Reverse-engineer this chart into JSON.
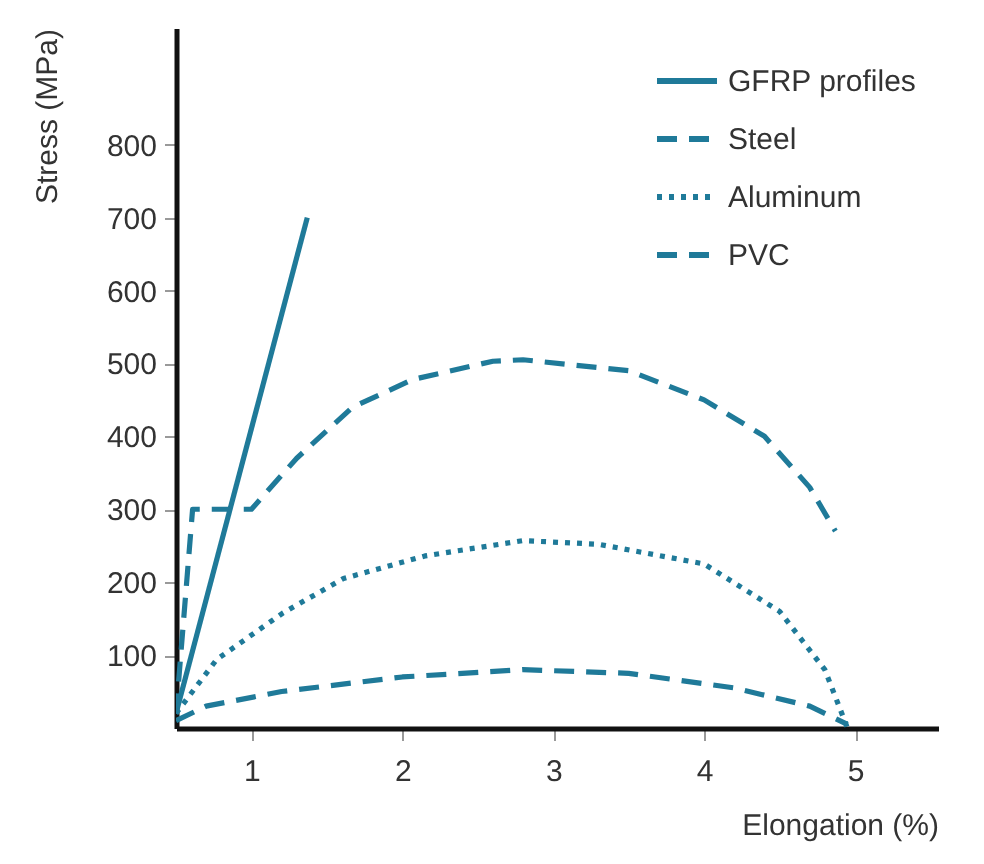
{
  "chart_data": {
    "type": "line",
    "xlabel": "Elongation (%)",
    "ylabel": "Stress (MPa)",
    "xlim": [
      0.5,
      5.55
    ],
    "ylim": [
      0,
      960
    ],
    "xticks": [
      1,
      2,
      3,
      4,
      5
    ],
    "yticks": [
      100,
      200,
      300,
      400,
      500,
      600,
      700,
      800
    ],
    "grid": false,
    "legend": "top right",
    "marker": "none",
    "series": [
      {
        "name": "GFRP profiles",
        "color": "#1f7a99",
        "line_style": "solid",
        "x": [
          0.5,
          1.37
        ],
        "values": [
          20,
          700
        ]
      },
      {
        "name": "Steel",
        "color": "#1f7a99",
        "line_style": "dashed",
        "x": [
          0.5,
          0.61,
          1.0,
          1.3,
          1.67,
          2.07,
          2.6,
          2.8,
          3.5,
          4.0,
          4.4,
          4.7,
          4.87
        ],
        "values": [
          20,
          300,
          300,
          370,
          440,
          478,
          503,
          505,
          490,
          450,
          400,
          330,
          270
        ]
      },
      {
        "name": "Aluminum",
        "color": "#1f7a99",
        "line_style": "dotted",
        "x": [
          0.5,
          0.77,
          1.21,
          1.61,
          2.15,
          2.8,
          3.3,
          4.0,
          4.5,
          4.8,
          4.95
        ],
        "values": [
          20,
          94,
          158,
          205,
          236,
          257,
          252,
          225,
          160,
          80,
          0
        ]
      },
      {
        "name": "PVC",
        "color": "#1f7a99",
        "line_style": "dashed",
        "x": [
          0.5,
          0.7,
          1.2,
          2.0,
          2.8,
          3.5,
          4.2,
          4.7,
          4.95
        ],
        "values": [
          10,
          30,
          50,
          70,
          80,
          75,
          55,
          30,
          5
        ]
      }
    ]
  }
}
